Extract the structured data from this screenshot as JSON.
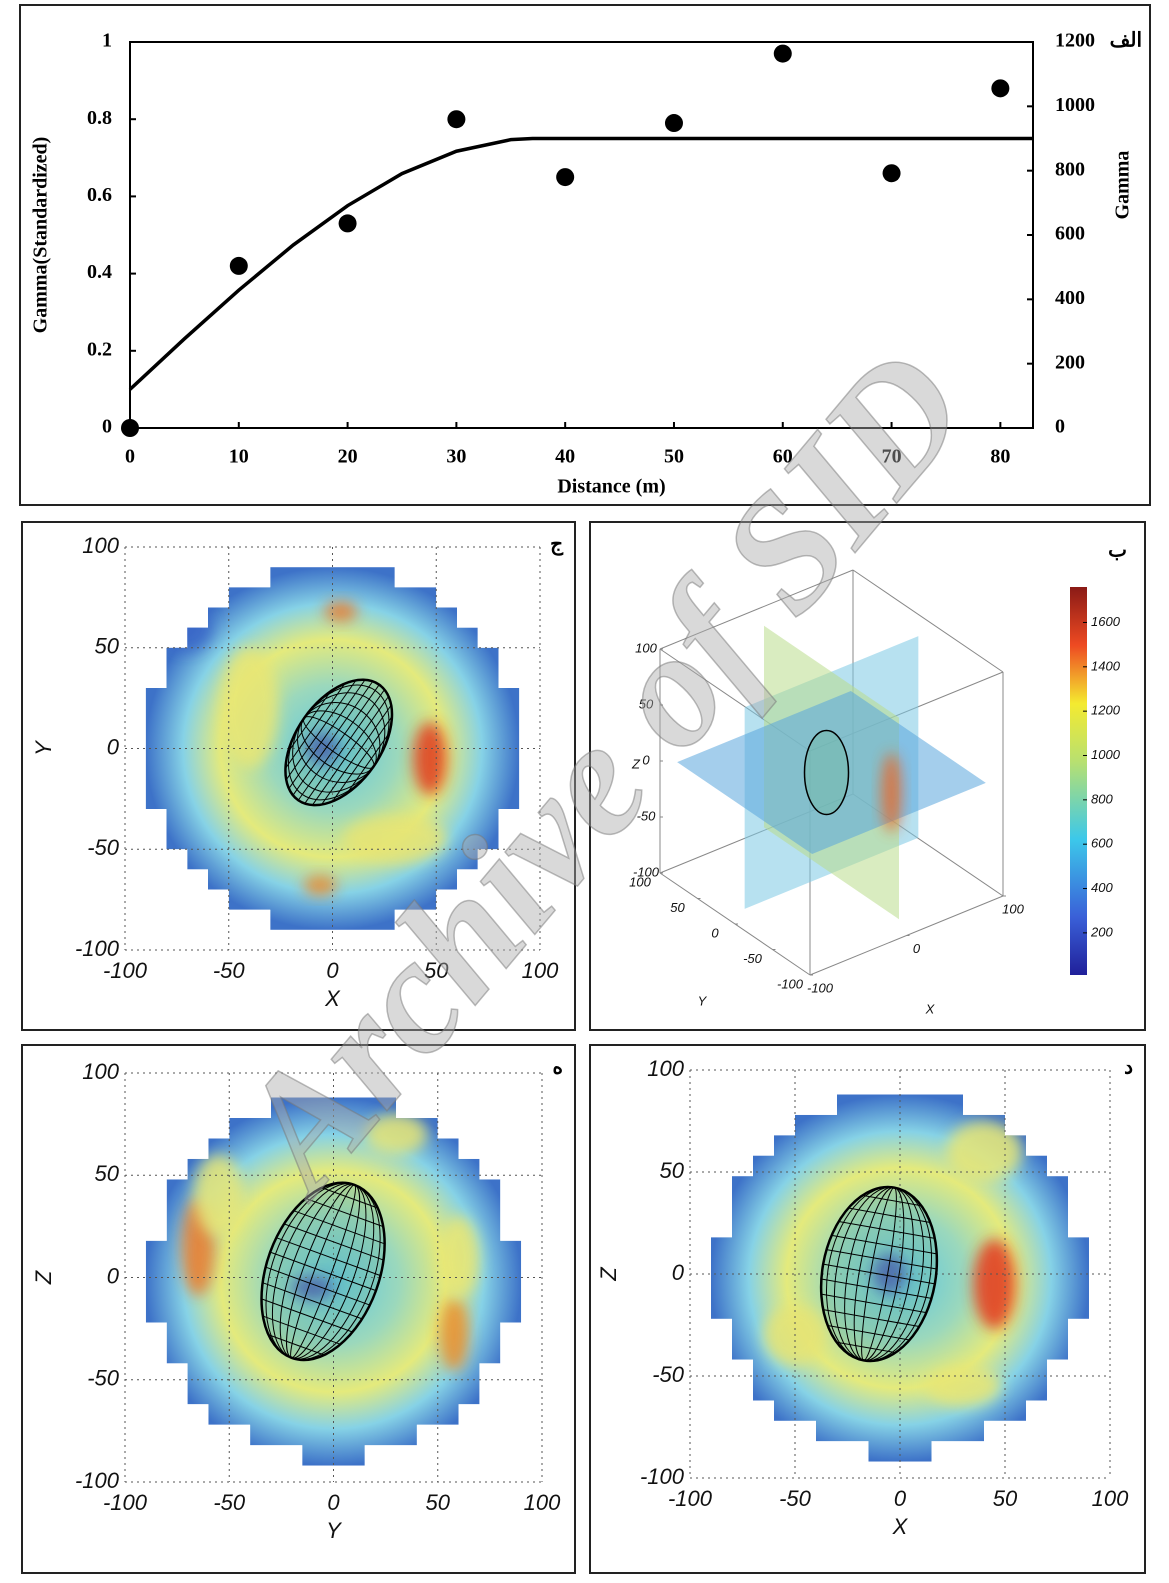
{
  "watermark": "Archive of SID",
  "chart_data": [
    {
      "type": "scatter",
      "label": "الف",
      "xlabel": "Distance (m)",
      "ylabel": "Gamma(Standardized)",
      "y2label": "Gamma",
      "xlim": [
        0,
        83
      ],
      "xticks": [
        0,
        10,
        20,
        30,
        40,
        50,
        60,
        70,
        80
      ],
      "ylim": [
        0,
        1
      ],
      "yticks": [
        0,
        0.2,
        0.4,
        0.6,
        0.8,
        1
      ],
      "y2lim": [
        0,
        1200
      ],
      "y2ticks": [
        0,
        200,
        400,
        600,
        800,
        1000,
        1200
      ],
      "series": [
        {
          "mode": "markers",
          "color": "#000000",
          "x": [
            0,
            10,
            20,
            30,
            40,
            50,
            60,
            70,
            80
          ],
          "values": [
            0,
            0.42,
            0.53,
            0.8,
            0.65,
            0.79,
            0.97,
            0.66,
            0.88
          ]
        },
        {
          "mode": "line",
          "color": "#000000",
          "x": [
            0,
            5,
            10,
            15,
            20,
            25,
            30,
            35,
            37,
            83
          ],
          "values": [
            0.1,
            0.231,
            0.357,
            0.474,
            0.576,
            0.659,
            0.717,
            0.747,
            0.75,
            0.75
          ]
        }
      ]
    },
    {
      "type": "heatmap",
      "label": "ج",
      "xlabel": "X",
      "ylabel": "Y",
      "xlim": [
        -100,
        100
      ],
      "ylim": [
        -100,
        100
      ],
      "xticks": [
        -100,
        -50,
        0,
        50,
        100
      ],
      "yticks": [
        -100,
        -50,
        0,
        50,
        100
      ],
      "grid": true
    },
    {
      "type": "volume",
      "label": "ب",
      "xlabel": "X",
      "ylabel": "Y",
      "zlabel": "Z",
      "xlim": [
        -100,
        100
      ],
      "ylim": [
        -100,
        100
      ],
      "zlim": [
        -100,
        100
      ],
      "xticks": [
        -100,
        0,
        100
      ],
      "yticks": [
        -100,
        -50,
        0,
        50,
        100
      ],
      "zticks": [
        -100,
        -50,
        0,
        50,
        100
      ],
      "clim": [
        10,
        1760
      ],
      "cticks": [
        200,
        400,
        600,
        800,
        1000,
        1200,
        1400,
        1600
      ]
    },
    {
      "type": "heatmap",
      "label": "ه",
      "xlabel": "Y",
      "ylabel": "Z",
      "xlim": [
        -100,
        100
      ],
      "ylim": [
        -100,
        100
      ],
      "xticks": [
        -100,
        -50,
        0,
        50,
        100
      ],
      "yticks": [
        -100,
        -50,
        0,
        50,
        100
      ],
      "grid": true
    },
    {
      "type": "heatmap",
      "label": "د",
      "xlabel": "X",
      "ylabel": "Z",
      "xlim": [
        -100,
        100
      ],
      "ylim": [
        -100,
        100
      ],
      "xticks": [
        -100,
        -50,
        0,
        50,
        100
      ],
      "yticks": [
        -100,
        -50,
        0,
        50,
        100
      ],
      "grid": true
    }
  ]
}
